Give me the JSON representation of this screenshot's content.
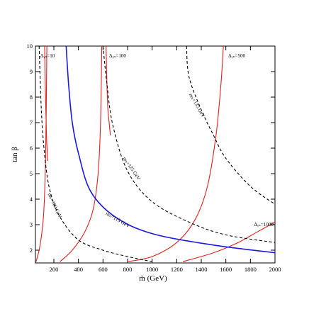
{
  "chart_data": {
    "type": "line",
    "title": "",
    "xlabel": "m̃ (GeV)",
    "ylabel": "tan β",
    "xlim": [
      50,
      2000
    ],
    "ylim": [
      1.5,
      10
    ],
    "grid": false,
    "legend": "none",
    "xticks": [
      200,
      400,
      600,
      800,
      1000,
      1200,
      1400,
      1600,
      1800,
      2000
    ],
    "yticks": [
      2,
      3,
      4,
      5,
      6,
      7,
      8,
      9,
      10
    ],
    "series": [
      {
        "id": "delta10",
        "color": "#e0201e",
        "style": "solid",
        "x": [
          55,
          80,
          100,
          115,
          127,
          133,
          138,
          143
        ],
        "y": [
          1.55,
          2.0,
          2.6,
          3.3,
          4.5,
          5.8,
          7.5,
          10.0
        ]
      },
      {
        "id": "delta10-left",
        "color": "#e0201e",
        "style": "solid",
        "x": [
          125,
          132,
          140,
          150
        ],
        "y": [
          10.0,
          8.0,
          6.5,
          5.5
        ]
      },
      {
        "id": "delta100",
        "color": "#e0201e",
        "style": "solid",
        "x": [
          250,
          350,
          450,
          520,
          560,
          580,
          590
        ],
        "y": [
          1.55,
          2.0,
          2.7,
          3.6,
          5.0,
          7.0,
          10.0
        ]
      },
      {
        "id": "delta100-right",
        "color": "#e0201e",
        "style": "solid",
        "x": [
          625,
          632,
          640,
          650,
          660
        ],
        "y": [
          10.0,
          8.5,
          7.5,
          7.0,
          6.5
        ]
      },
      {
        "id": "delta500",
        "color": "#e0201e",
        "style": "solid",
        "x": [
          800,
          1000,
          1200,
          1350,
          1450,
          1520,
          1560,
          1580
        ],
        "y": [
          1.55,
          1.75,
          2.3,
          3.2,
          4.5,
          6.5,
          8.5,
          10.0
        ]
      },
      {
        "id": "delta1000",
        "color": "#e0201e",
        "style": "solid",
        "x": [
          1250,
          1500,
          1700,
          1850,
          2000
        ],
        "y": [
          1.55,
          1.9,
          2.3,
          2.7,
          3.1
        ]
      },
      {
        "id": "mh115",
        "color": "#1a1ae0",
        "style": "solid",
        "x": [
          300,
          320,
          350,
          400,
          500,
          700,
          1000,
          1500,
          2000
        ],
        "y": [
          10.0,
          8.5,
          7.0,
          5.8,
          4.3,
          3.3,
          2.65,
          2.2,
          1.9
        ]
      },
      {
        "id": "mh100",
        "color": "#000000",
        "style": "dashed",
        "x": [
          80,
          100,
          130,
          170,
          250,
          400,
          600,
          800,
          1000
        ],
        "y": [
          10.0,
          7.3,
          5.5,
          4.3,
          3.3,
          2.4,
          2.0,
          1.75,
          1.55
        ]
      },
      {
        "id": "mh125",
        "color": "#000000",
        "style": "dashed",
        "x": [
          600,
          630,
          680,
          800,
          1000,
          1300,
          1600,
          2000
        ],
        "y": [
          10.0,
          8.6,
          6.9,
          5.1,
          3.9,
          3.1,
          2.6,
          2.3
        ]
      },
      {
        "id": "mh135",
        "color": "#000000",
        "style": "dashed",
        "x": [
          1280,
          1300,
          1400,
          1500,
          1600,
          1800,
          2000
        ],
        "y": [
          10.0,
          8.8,
          7.5,
          6.5,
          5.6,
          4.5,
          3.8
        ]
      }
    ],
    "annotations": [
      {
        "text": "Δᵧₙ=10",
        "x": 90,
        "y": 9.55,
        "rotate": 0
      },
      {
        "text": "Δᵧₙ=100",
        "x": 650,
        "y": 9.55,
        "rotate": 0
      },
      {
        "text": "Δᵧₙ=500",
        "x": 1620,
        "y": 9.55,
        "rotate": 0
      },
      {
        "text": "Δᵧₙ=1000",
        "x": 1830,
        "y": 2.95,
        "rotate": 0
      },
      {
        "text": "mₕ=135 GeV",
        "x": 1300,
        "y": 8.1,
        "rotate": 60
      },
      {
        "text": "mₕ=125 GeV",
        "x": 760,
        "y": 5.6,
        "rotate": 55
      },
      {
        "text": "mₕ=115 GeV",
        "x": 620,
        "y": 3.4,
        "rotate": 30
      },
      {
        "text": "mₕ=100 GeV",
        "x": 150,
        "y": 4.2,
        "rotate": 65
      }
    ]
  }
}
